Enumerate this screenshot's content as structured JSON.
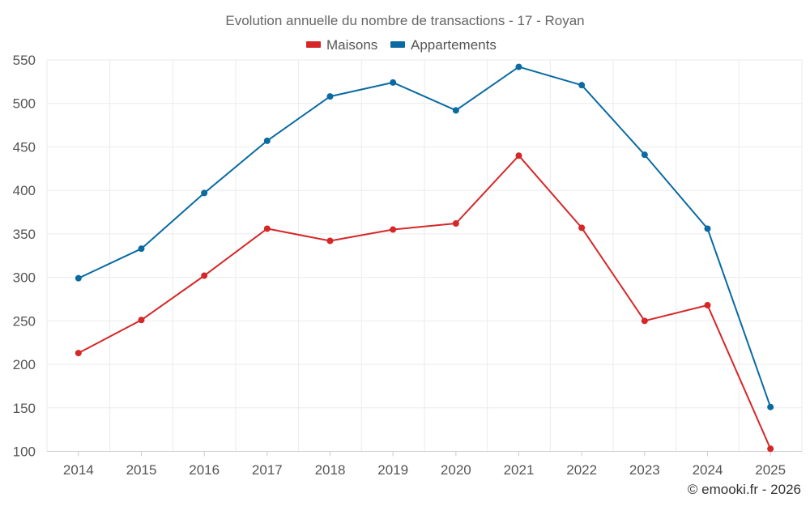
{
  "chart_data": {
    "type": "line",
    "title": "Evolution annuelle du nombre de transactions - 17 - Royan",
    "categories": [
      "2014",
      "2015",
      "2016",
      "2017",
      "2018",
      "2019",
      "2020",
      "2021",
      "2022",
      "2023",
      "2024",
      "2025"
    ],
    "series": [
      {
        "name": "Maisons",
        "color": "#d62728",
        "values": [
          213,
          251,
          302,
          356,
          342,
          355,
          362,
          440,
          357,
          250,
          268,
          103
        ]
      },
      {
        "name": "Appartements",
        "color": "#0a6aa1",
        "values": [
          299,
          333,
          397,
          457,
          508,
          524,
          492,
          542,
          521,
          441,
          356,
          151
        ]
      }
    ],
    "ylim": [
      100,
      550
    ],
    "yticks": [
      "100",
      "150",
      "200",
      "250",
      "300",
      "350",
      "400",
      "450",
      "500",
      "550"
    ],
    "grid": true,
    "legend_position": "top-center",
    "xlabel": "",
    "ylabel": ""
  },
  "credit": "© emooki.fr - 2026"
}
